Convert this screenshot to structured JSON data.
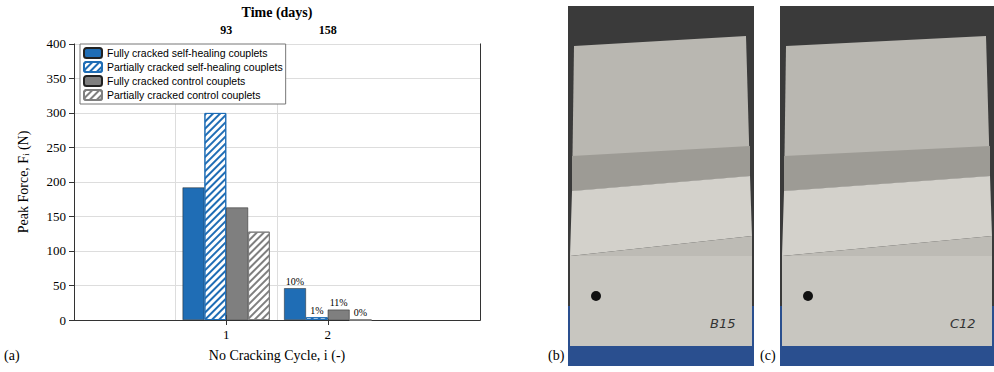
{
  "chart_data": {
    "type": "bar",
    "panel_label": "(a)",
    "x_label": "No Cracking Cycle, i (-)",
    "y_label": "Peak Force, Fᵢ (N)",
    "categories": [
      null,
      "1",
      "2",
      null
    ],
    "top_axis_label": "Time (days)",
    "top_categories": [
      null,
      "93",
      "158",
      null
    ],
    "ylim": [
      0,
      400
    ],
    "yticks": [
      0,
      50,
      100,
      150,
      200,
      250,
      300,
      350,
      400
    ],
    "grid": true,
    "legend": "upper left",
    "series": [
      {
        "name": "Fully cracked self-healing couplets",
        "color": "#1f6db5",
        "line_style": "solid",
        "values": [
          null,
          192,
          46,
          null
        ],
        "annotations": [
          null,
          null,
          "10%",
          null
        ]
      },
      {
        "name": "Partially cracked self-healing couplets",
        "color": "#1f6db5",
        "line_style": "hatched",
        "values": [
          null,
          300,
          4,
          null
        ],
        "annotations": [
          null,
          null,
          "1%",
          null
        ]
      },
      {
        "name": "Fully cracked control couplets",
        "color": "#7f7f7f",
        "line_style": "solid",
        "values": [
          null,
          163,
          15,
          null
        ],
        "annotations": [
          null,
          null,
          "11%",
          null
        ]
      },
      {
        "name": "Partially cracked control couplets",
        "color": "#7f7f7f",
        "line_style": "hatched",
        "values": [
          null,
          128,
          0,
          null
        ],
        "annotations": [
          null,
          null,
          "0%",
          null
        ]
      }
    ]
  },
  "photos": [
    {
      "label": "(b)",
      "marking": "B15"
    },
    {
      "label": "(c)",
      "marking": "C12"
    }
  ]
}
